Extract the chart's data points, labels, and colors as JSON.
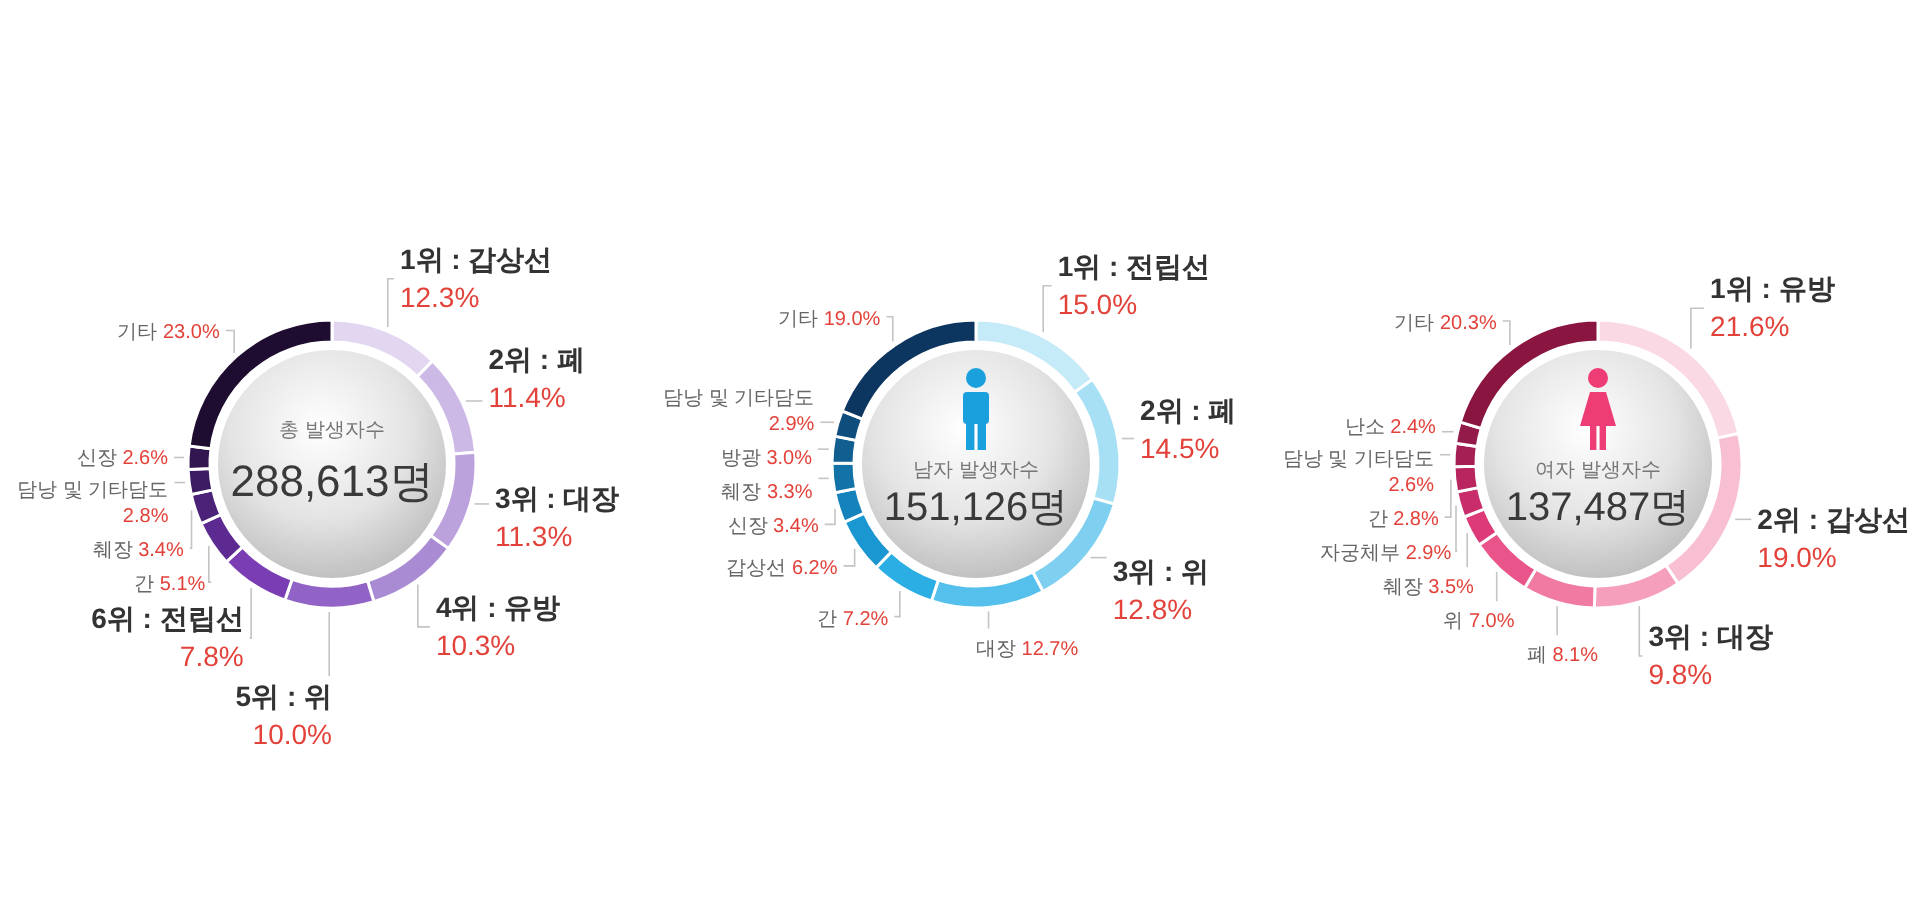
{
  "chart_data": [
    {
      "type": "donut",
      "categories": [
        "1위 : 갑상선",
        "2위 : 폐",
        "3위 : 대장",
        "4위 : 유방",
        "5위 : 위",
        "6위 : 전립선",
        "간",
        "췌장",
        "담낭 및 기타담도",
        "신장",
        "기타"
      ],
      "values": [
        12.3,
        11.4,
        11.3,
        10.3,
        10.0,
        7.8,
        5.1,
        3.4,
        2.8,
        2.6,
        23.0
      ],
      "value_labels": [
        "12.3%",
        "11.4%",
        "11.3%",
        "10.3%",
        "10.0%",
        "7.8%",
        "5.1%",
        "3.4%",
        "2.8%",
        "2.6%",
        "23.0%"
      ],
      "colors": [
        "#e2d6f0",
        "#cdb9e5",
        "#bba2dc",
        "#a98bd3",
        "#9163c6",
        "#7a3db3",
        "#5c2a90",
        "#4b2278",
        "#3c1b62",
        "#321650",
        "#1e0d30"
      ],
      "annotations": [
        "총 발생자수",
        "288,613명"
      ]
    },
    {
      "type": "donut",
      "categories": [
        "1위 : 전립선",
        "2위 : 폐",
        "3위 : 위",
        "대장",
        "간",
        "갑상선",
        "신장",
        "췌장",
        "방광",
        "담낭 및 기타담도",
        "기타"
      ],
      "values": [
        15.0,
        14.5,
        12.8,
        12.7,
        7.2,
        6.2,
        3.4,
        3.3,
        3.0,
        2.9,
        19.0
      ],
      "value_labels": [
        "15.0%",
        "14.5%",
        "12.8%",
        "12.7%",
        "7.2%",
        "6.2%",
        "3.4%",
        "3.3%",
        "3.0%",
        "2.9%",
        "19.0%"
      ],
      "colors": [
        "#c5eaf8",
        "#a7dff5",
        "#7fd0f0",
        "#55c0ec",
        "#2aaee4",
        "#1a96d0",
        "#1582bb",
        "#1372a6",
        "#115f90",
        "#0f4e7c",
        "#0c3560"
      ],
      "annotations": [
        "남자 발생자수",
        "151,126명"
      ]
    },
    {
      "type": "donut",
      "categories": [
        "1위 : 유방",
        "2위 : 갑상선",
        "3위 : 대장",
        "폐",
        "위",
        "췌장",
        "자궁체부",
        "간",
        "담낭 및 기타담도",
        "난소",
        "기타"
      ],
      "values": [
        21.6,
        19.0,
        9.8,
        8.1,
        7.0,
        3.5,
        2.9,
        2.8,
        2.6,
        2.4,
        20.3
      ],
      "value_labels": [
        "21.6%",
        "19.0%",
        "9.8%",
        "8.1%",
        "7.0%",
        "3.5%",
        "2.9%",
        "2.8%",
        "2.6%",
        "2.4%",
        "20.3%"
      ],
      "colors": [
        "#fbd9e4",
        "#f8bfd2",
        "#f59fbc",
        "#f07aa2",
        "#e9558a",
        "#dc3a78",
        "#c92c6a",
        "#b8255f",
        "#a51f54",
        "#921b4a",
        "#8a1540"
      ],
      "annotations": [
        "여자 발생자수",
        "137,487명"
      ]
    }
  ]
}
